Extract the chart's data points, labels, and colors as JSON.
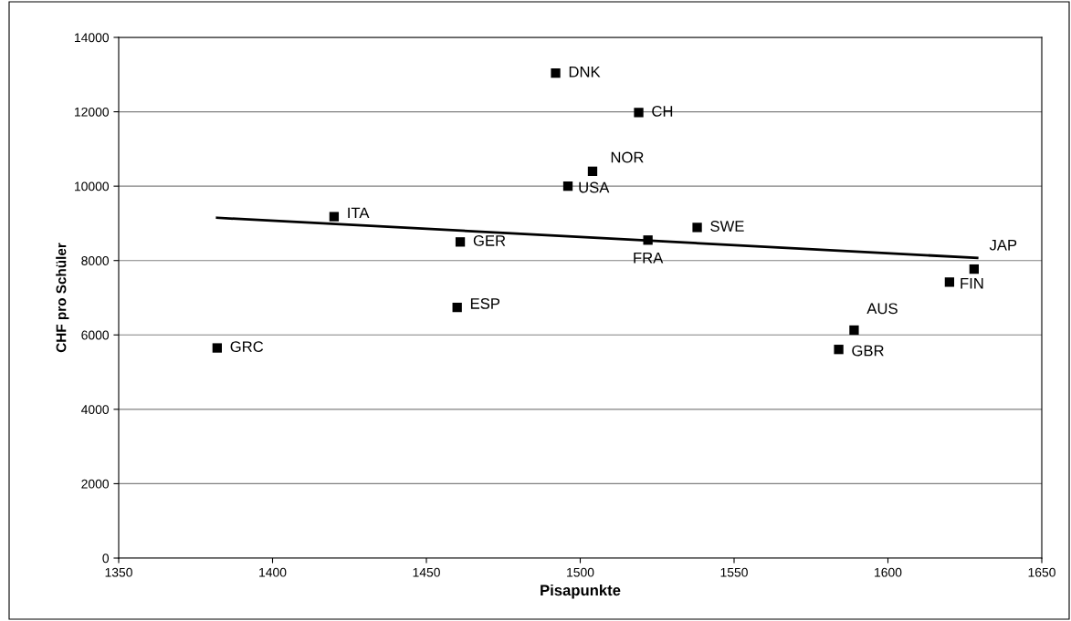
{
  "chart_data": {
    "type": "scatter",
    "xlabel": "Pisapunkte",
    "ylabel": "CHF pro Schüler",
    "series": [
      {
        "color": "#000000",
        "marker": "square",
        "x": [
          1382,
          1420,
          1461,
          1460,
          1492,
          1519,
          1504,
          1496,
          1522,
          1538,
          1628,
          1620,
          1589,
          1584
        ],
        "values": [
          5650,
          9180,
          8500,
          6740,
          13040,
          11980,
          10400,
          10000,
          8550,
          8890,
          7770,
          7420,
          6130,
          5610
        ]
      },
      {
        "type": "line",
        "color": "#000000",
        "marker": "none",
        "line_style": "solid",
        "x": [
          1382,
          1629
        ],
        "values": [
          9150,
          8070
        ]
      }
    ],
    "annotations": [
      {
        "text": "GRC",
        "x": 1382,
        "y": 5650
      },
      {
        "text": "ITA",
        "x": 1420,
        "y": 9180
      },
      {
        "text": "GER",
        "x": 1461,
        "y": 8500
      },
      {
        "text": "ESP",
        "x": 1460,
        "y": 6740
      },
      {
        "text": "DNK",
        "x": 1492,
        "y": 13040
      },
      {
        "text": "CH",
        "x": 1519,
        "y": 11980
      },
      {
        "text": "NOR",
        "x": 1504,
        "y": 10400
      },
      {
        "text": "USA",
        "x": 1496,
        "y": 10000
      },
      {
        "text": "FRA",
        "x": 1522,
        "y": 8550
      },
      {
        "text": "SWE",
        "x": 1538,
        "y": 8890
      },
      {
        "text": "JAP",
        "x": 1628,
        "y": 7770
      },
      {
        "text": "FIN",
        "x": 1620,
        "y": 7420
      },
      {
        "text": "AUS",
        "x": 1589,
        "y": 6130
      },
      {
        "text": "GBR",
        "x": 1584,
        "y": 5610
      }
    ],
    "xlim": [
      1350,
      1650
    ],
    "xticks": [
      1350,
      1400,
      1450,
      1500,
      1550,
      1600,
      1650
    ],
    "ylim": [
      0,
      14000
    ],
    "yticks": [
      0,
      2000,
      4000,
      6000,
      8000,
      10000,
      12000,
      14000
    ],
    "grid": "y",
    "legend": false
  }
}
